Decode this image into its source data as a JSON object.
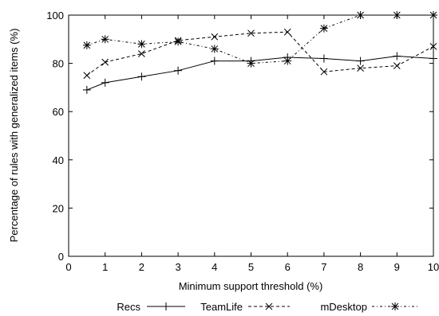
{
  "chart_data": {
    "type": "line",
    "title": "",
    "xlabel": "Minimum support threshold (%)",
    "ylabel": "Percentage of rules with generalized items (%)",
    "xlim": [
      0,
      10
    ],
    "ylim": [
      0,
      100
    ],
    "xticks": [
      0,
      1,
      2,
      3,
      4,
      5,
      6,
      7,
      8,
      9,
      10
    ],
    "yticks": [
      0,
      20,
      40,
      60,
      80,
      100
    ],
    "grid": false,
    "legend_position": "bottom",
    "series": [
      {
        "name": "Recs",
        "line_style": "solid",
        "marker": "plus",
        "x": [
          0.5,
          1,
          2,
          3,
          4,
          5,
          6,
          7,
          8,
          9,
          10
        ],
        "y": [
          69,
          72,
          74.5,
          77,
          81,
          81,
          82.5,
          82,
          81,
          83,
          82
        ]
      },
      {
        "name": "TeamLife",
        "line_style": "dashed",
        "marker": "cross",
        "x": [
          0.5,
          1,
          2,
          3,
          4,
          5,
          6,
          7,
          8,
          9,
          10
        ],
        "y": [
          75,
          80.5,
          84,
          89.5,
          91,
          92.5,
          93,
          76.5,
          78,
          79,
          87
        ]
      },
      {
        "name": "mDesktop",
        "line_style": "dash-dot",
        "marker": "asterisk",
        "x": [
          0.5,
          1,
          2,
          3,
          4,
          5,
          6,
          7,
          8,
          9,
          10
        ],
        "y": [
          87.5,
          90,
          88,
          89,
          86,
          80,
          81,
          94.5,
          100,
          100,
          100
        ]
      }
    ]
  }
}
